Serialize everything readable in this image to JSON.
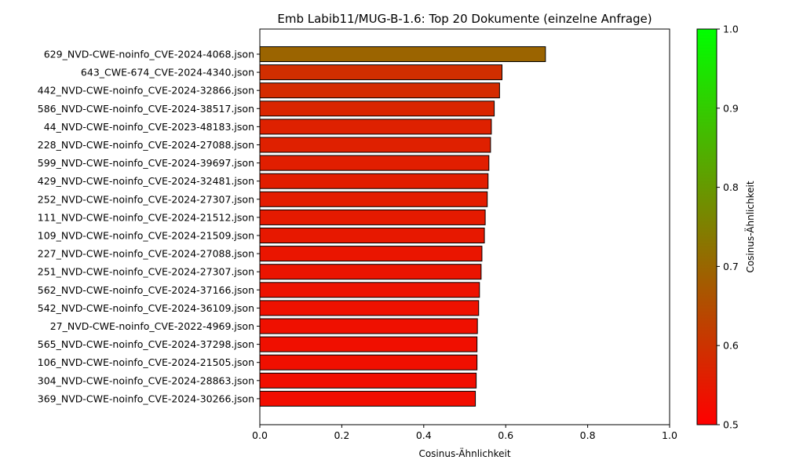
{
  "chart_data": {
    "type": "bar",
    "orientation": "horizontal",
    "title": "Emb Labib11/MUG-B-1.6: Top 20 Dokumente (einzelne Anfrage)",
    "xlabel": "Cosinus-Ähnlichkeit",
    "ylabel": "",
    "xlim": [
      0,
      1.0
    ],
    "xticks": [
      "0.0",
      "0.2",
      "0.4",
      "0.6",
      "0.8",
      "1.0"
    ],
    "grid": false,
    "categories": [
      "629_NVD-CWE-noinfo_CVE-2024-4068.json",
      "643_CWE-674_CVE-2024-4340.json",
      "442_NVD-CWE-noinfo_CVE-2024-32866.json",
      "586_NVD-CWE-noinfo_CVE-2024-38517.json",
      "44_NVD-CWE-noinfo_CVE-2023-48183.json",
      "228_NVD-CWE-noinfo_CVE-2024-27088.json",
      "599_NVD-CWE-noinfo_CVE-2024-39697.json",
      "429_NVD-CWE-noinfo_CVE-2024-32481.json",
      "252_NVD-CWE-noinfo_CVE-2024-27307.json",
      "111_NVD-CWE-noinfo_CVE-2024-21512.json",
      "109_NVD-CWE-noinfo_CVE-2024-21509.json",
      "227_NVD-CWE-noinfo_CVE-2024-27088.json",
      "251_NVD-CWE-noinfo_CVE-2024-27307.json",
      "562_NVD-CWE-noinfo_CVE-2024-37166.json",
      "542_NVD-CWE-noinfo_CVE-2024-36109.json",
      "27_NVD-CWE-noinfo_CVE-2022-4969.json",
      "565_NVD-CWE-noinfo_CVE-2024-37298.json",
      "106_NVD-CWE-noinfo_CVE-2024-21505.json",
      "304_NVD-CWE-noinfo_CVE-2024-28863.json",
      "369_NVD-CWE-noinfo_CVE-2024-30266.json"
    ],
    "values": [
      0.697,
      0.591,
      0.585,
      0.572,
      0.565,
      0.563,
      0.559,
      0.557,
      0.555,
      0.55,
      0.548,
      0.542,
      0.54,
      0.536,
      0.534,
      0.531,
      0.53,
      0.53,
      0.528,
      0.526
    ],
    "bar_edge_color": "#000000",
    "colorbar": {
      "label": "Cosinus-Ähnlichkeit",
      "range": [
        0.5,
        1.0
      ],
      "ticks": [
        "0.5",
        "0.6",
        "0.7",
        "0.8",
        "0.9",
        "1.0"
      ],
      "color_low": "#ff0000",
      "color_high": "#00ff00"
    }
  }
}
